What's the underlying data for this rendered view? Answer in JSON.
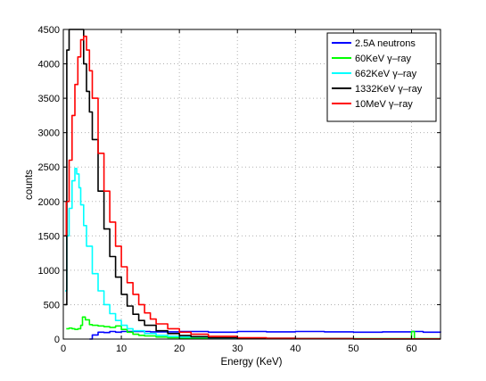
{
  "chart_data": {
    "type": "line",
    "title": "",
    "xlabel": "Energy (KeV)",
    "ylabel": "counts",
    "xlim": [
      0,
      65
    ],
    "ylim": [
      0,
      4500
    ],
    "xticks": [
      0,
      10,
      20,
      30,
      40,
      50,
      60
    ],
    "yticks": [
      0,
      500,
      1000,
      1500,
      2000,
      2500,
      3000,
      3500,
      4000,
      4500
    ],
    "grid": true,
    "legend_position": "top-right",
    "series": [
      {
        "name": "2.5A neutrons",
        "color": "#0000ff",
        "x": [
          4.5,
          5,
          6,
          7,
          8,
          9,
          10,
          12,
          15,
          20,
          25,
          30,
          35,
          40,
          45,
          50,
          55,
          60,
          62,
          65
        ],
        "y": [
          0,
          60,
          100,
          95,
          110,
          100,
          110,
          110,
          105,
          110,
          100,
          110,
          105,
          110,
          105,
          100,
          105,
          110,
          100,
          110
        ]
      },
      {
        "name": "60KeV γ–ray",
        "color": "#00ff00",
        "x": [
          0.5,
          1,
          1.5,
          2,
          2.5,
          3,
          3.3,
          3.8,
          4.5,
          5,
          6,
          7,
          8,
          9,
          10,
          11,
          12,
          13,
          14,
          16,
          18,
          20,
          25,
          30,
          40,
          50,
          59.5,
          60,
          60.5,
          62,
          65
        ],
        "y": [
          150,
          160,
          150,
          140,
          150,
          200,
          320,
          280,
          210,
          200,
          190,
          180,
          170,
          190,
          140,
          100,
          70,
          55,
          45,
          30,
          20,
          15,
          10,
          5,
          5,
          5,
          5,
          110,
          5,
          5,
          5
        ]
      },
      {
        "name": "662KeV γ–ray",
        "color": "#00ffff",
        "x": [
          0.3,
          0.6,
          1,
          1.5,
          2,
          2.3,
          2.7,
          3,
          3.5,
          4,
          5,
          6,
          7,
          8,
          9,
          10,
          11,
          12,
          14,
          16,
          18,
          20,
          25,
          30,
          40,
          50,
          65
        ],
        "y": [
          700,
          1500,
          1900,
          2300,
          2480,
          2400,
          2200,
          1950,
          1650,
          1350,
          950,
          700,
          500,
          370,
          270,
          200,
          150,
          120,
          80,
          55,
          40,
          30,
          15,
          10,
          5,
          3,
          2
        ]
      },
      {
        "name": "1332KeV γ–ray",
        "color": "#000000",
        "x": [
          0.2,
          0.6,
          1,
          1.5,
          2,
          2.5,
          3,
          3.5,
          4,
          4.5,
          5,
          6,
          7,
          8,
          9,
          10,
          11,
          12,
          13,
          14,
          16,
          18,
          20,
          22,
          25,
          30,
          40,
          50,
          65
        ],
        "y": [
          500,
          4200,
          4500,
          4500,
          4500,
          4500,
          4500,
          4000,
          3600,
          3300,
          2900,
          2150,
          1600,
          1200,
          900,
          650,
          480,
          360,
          270,
          200,
          120,
          80,
          50,
          35,
          20,
          10,
          5,
          3,
          2
        ]
      },
      {
        "name": "10MeV γ–ray",
        "color": "#ff0000",
        "x": [
          0.2,
          0.5,
          1,
          1.5,
          2,
          2.5,
          3,
          3.5,
          4,
          4.5,
          5,
          6,
          7,
          8,
          9,
          10,
          11,
          12,
          13,
          14,
          15,
          16,
          18,
          20,
          22,
          25,
          30,
          35,
          40,
          50,
          65
        ],
        "y": [
          1500,
          2000,
          2600,
          3250,
          3700,
          4100,
          4350,
          4400,
          4200,
          3900,
          3500,
          2700,
          2150,
          1700,
          1350,
          1050,
          820,
          650,
          500,
          380,
          290,
          220,
          150,
          100,
          70,
          40,
          20,
          10,
          5,
          3,
          2
        ]
      }
    ]
  }
}
